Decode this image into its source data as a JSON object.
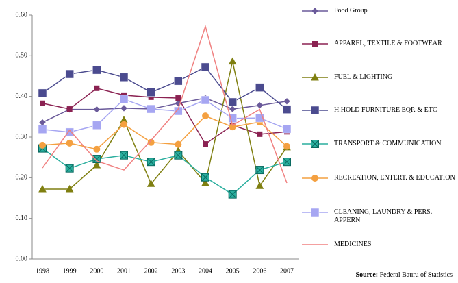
{
  "chart_data": {
    "type": "line",
    "categories": [
      "1998",
      "1999",
      "2000",
      "2001",
      "2002",
      "2003",
      "2004",
      "2005",
      "2006",
      "2007"
    ],
    "ylim": [
      0,
      0.6
    ],
    "yticks": [
      {
        "value": 0,
        "label": "0.00"
      },
      {
        "value": 0.1,
        "label": "0.10"
      },
      {
        "value": 0.2,
        "label": "0.20"
      },
      {
        "value": 0.3,
        "label": "0.30"
      },
      {
        "value": 0.4,
        "label": "0.40"
      },
      {
        "value": 0.5,
        "label": "0.50"
      },
      {
        "value": 0.6,
        "label": "0.60"
      }
    ],
    "grid": false,
    "legend": "right",
    "series": [
      {
        "name": "Food Group",
        "color": "#6A5A9A",
        "marker": "diamond",
        "values": [
          0.336,
          0.368,
          0.368,
          0.371,
          0.369,
          0.383,
          0.396,
          0.369,
          0.378,
          0.388
        ]
      },
      {
        "name": "APPAREL, TEXTILE & FOOTWEAR",
        "color": "#8B2252",
        "marker": "square",
        "values": [
          0.383,
          0.369,
          0.42,
          0.403,
          0.398,
          0.396,
          0.283,
          0.329,
          0.307,
          0.313
        ]
      },
      {
        "name": "FUEL & LIGHTING",
        "color": "#7F7F10",
        "marker": "triangle",
        "values": [
          0.172,
          0.172,
          0.231,
          0.342,
          0.185,
          0.266,
          0.187,
          0.486,
          0.18,
          0.275
        ]
      },
      {
        "name": "H.HOLD FURNITURE EQP. & ETC",
        "color": "#4B4B8F",
        "marker": "bigsquare",
        "values": [
          0.408,
          0.455,
          0.465,
          0.447,
          0.41,
          0.438,
          0.472,
          0.386,
          0.422,
          0.368
        ]
      },
      {
        "name": "TRANSPORT & COMMUNICATION",
        "color": "#2AAE9E",
        "marker": "xsquare",
        "values": [
          0.272,
          0.223,
          0.246,
          0.255,
          0.239,
          0.255,
          0.201,
          0.159,
          0.219,
          0.239
        ]
      },
      {
        "name": "RECREATION, ENTERT. & EDUCATION",
        "color": "#F4A040",
        "marker": "circle",
        "values": [
          0.28,
          0.285,
          0.27,
          0.331,
          0.287,
          0.282,
          0.352,
          0.325,
          0.337,
          0.277
        ]
      },
      {
        "name": "CLEANING, LAUNDRY & PERS. APPERN",
        "color": "#A6A6F2",
        "marker": "bigsquare",
        "values": [
          0.319,
          0.312,
          0.329,
          0.393,
          0.369,
          0.364,
          0.391,
          0.346,
          0.347,
          0.32
        ]
      },
      {
        "name": "MEDICINES",
        "color": "#F08080",
        "marker": "none",
        "values": [
          0.224,
          0.317,
          0.241,
          0.219,
          0.292,
          0.369,
          0.572,
          0.329,
          0.368,
          0.187
        ]
      }
    ],
    "source_label": "Source:",
    "source": "Federal Bauru of Statistics"
  }
}
